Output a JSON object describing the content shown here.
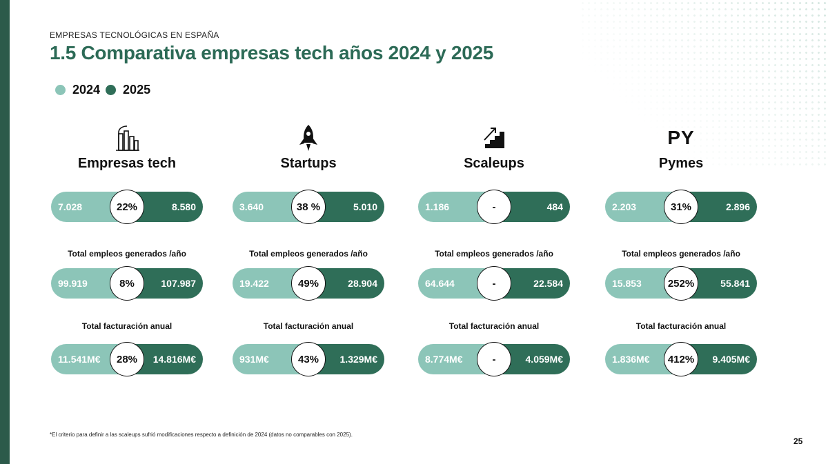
{
  "header": {
    "section": "EMPRESAS TECNOLÓGICAS EN ESPAÑA",
    "title": "1.5 Comparativa empresas tech años 2024 y 2025"
  },
  "legend": [
    {
      "label": "2024",
      "color": "#8cc5b8"
    },
    {
      "label": "2025",
      "color": "#2f6e58"
    }
  ],
  "colors": {
    "year_2024": "#8cc5b8",
    "year_2025": "#2f6e58",
    "sidebar": "#2c5a4a",
    "title": "#2c6a56"
  },
  "metric_labels": {
    "employment": "Total empleos generados /año",
    "revenue": "Total facturación anual"
  },
  "columns": [
    {
      "icon": "buildings-icon",
      "title": "Empresas tech",
      "companies": {
        "v2024": "7.028",
        "change": "22%",
        "v2025": "8.580"
      },
      "employment": {
        "v2024": "99.919",
        "change": "8%",
        "v2025": "107.987"
      },
      "revenue": {
        "v2024": "11.541M€",
        "change": "28%",
        "v2025": "14.816M€"
      }
    },
    {
      "icon": "rocket-icon",
      "title": "Startups",
      "companies": {
        "v2024": "3.640",
        "change": "38 %",
        "v2025": "5.010"
      },
      "employment": {
        "v2024": "19.422",
        "change": "49%",
        "v2025": "28.904"
      },
      "revenue": {
        "v2024": "931M€",
        "change": "43%",
        "v2025": "1.329M€"
      }
    },
    {
      "icon": "growth-stairs-icon",
      "title": "Scaleups",
      "companies": {
        "v2024": "1.186",
        "change": "-",
        "v2025": "484"
      },
      "employment": {
        "v2024": "64.644",
        "change": "-",
        "v2025": "22.584"
      },
      "revenue": {
        "v2024": "8.774M€",
        "change": "-",
        "v2025": "4.059M€"
      }
    },
    {
      "icon": "py-text-icon",
      "icon_text": "PY",
      "title": "Pymes",
      "companies": {
        "v2024": "2.203",
        "change": "31%",
        "v2025": "2.896"
      },
      "employment": {
        "v2024": "15.853",
        "change": "252%",
        "v2025": "55.841"
      },
      "revenue": {
        "v2024": "1.836M€",
        "change": "412%",
        "v2025": "9.405M€"
      }
    }
  ],
  "footnote": "*El criterio para definir a las scaleups sufrió modificaciones respecto a definición de 2024 (datos no comparables con 2025).",
  "page_number": "25"
}
